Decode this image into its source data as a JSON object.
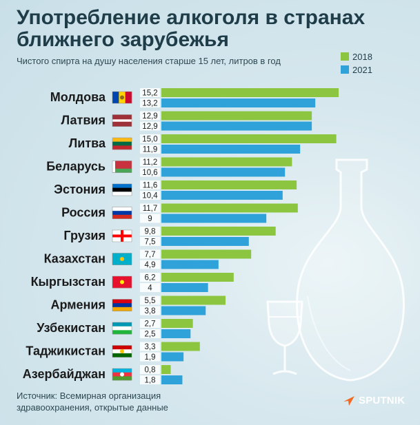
{
  "title": "Употребление алкоголя в странах ближнего зарубежья",
  "subtitle": "Чистого спирта на душу населения старше 15 лет, литров в год",
  "source": "Источник: Всемирная организация здравоохранения, открытые данные",
  "logo": "SPUTNIK",
  "colors": {
    "series_2018": "#8cc641",
    "series_2021": "#2fa3d9"
  },
  "chart_data": {
    "type": "bar",
    "orientation": "horizontal",
    "title": "Употребление алкоголя в странах ближнего зарубежья",
    "subtitle": "Чистого спирта на душу населения старше 15 лет, литров в год",
    "categories": [
      "Молдова",
      "Латвия",
      "Литва",
      "Беларусь",
      "Эстония",
      "Россия",
      "Грузия",
      "Казахстан",
      "Кыргызстан",
      "Армения",
      "Узбекистан",
      "Таджикистан",
      "Азербайджан"
    ],
    "flag_icons": [
      "moldova-flag-icon",
      "latvia-flag-icon",
      "lithuania-flag-icon",
      "belarus-flag-icon",
      "estonia-flag-icon",
      "russia-flag-icon",
      "georgia-flag-icon",
      "kazakhstan-flag-icon",
      "kyrgyzstan-flag-icon",
      "armenia-flag-icon",
      "uzbekistan-flag-icon",
      "tajikistan-flag-icon",
      "azerbaijan-flag-icon"
    ],
    "series": [
      {
        "name": "2018",
        "color": "#8cc641",
        "labels": [
          "15,2",
          "12,9",
          "15,0",
          "11,2",
          "11,6",
          "11,7",
          "9,8",
          "7,7",
          "6,2",
          "5,5",
          "2,7",
          "3,3",
          "0,8"
        ],
        "values": [
          15.2,
          12.9,
          15.0,
          11.2,
          11.6,
          11.7,
          9.8,
          7.7,
          6.2,
          5.5,
          2.7,
          3.3,
          0.8
        ]
      },
      {
        "name": "2021",
        "color": "#2fa3d9",
        "labels": [
          "13,2",
          "12,9",
          "11,9",
          "10,6",
          "10,4",
          "9",
          "7,5",
          "4,9",
          "4",
          "3,8",
          "2,5",
          "1,9",
          "1,8"
        ],
        "values": [
          13.2,
          12.9,
          11.9,
          10.6,
          10.4,
          9,
          7.5,
          4.9,
          4,
          3.8,
          2.5,
          1.9,
          1.8
        ]
      }
    ],
    "legend": "top-right",
    "grid": false,
    "xlim": [
      0,
      16
    ]
  }
}
